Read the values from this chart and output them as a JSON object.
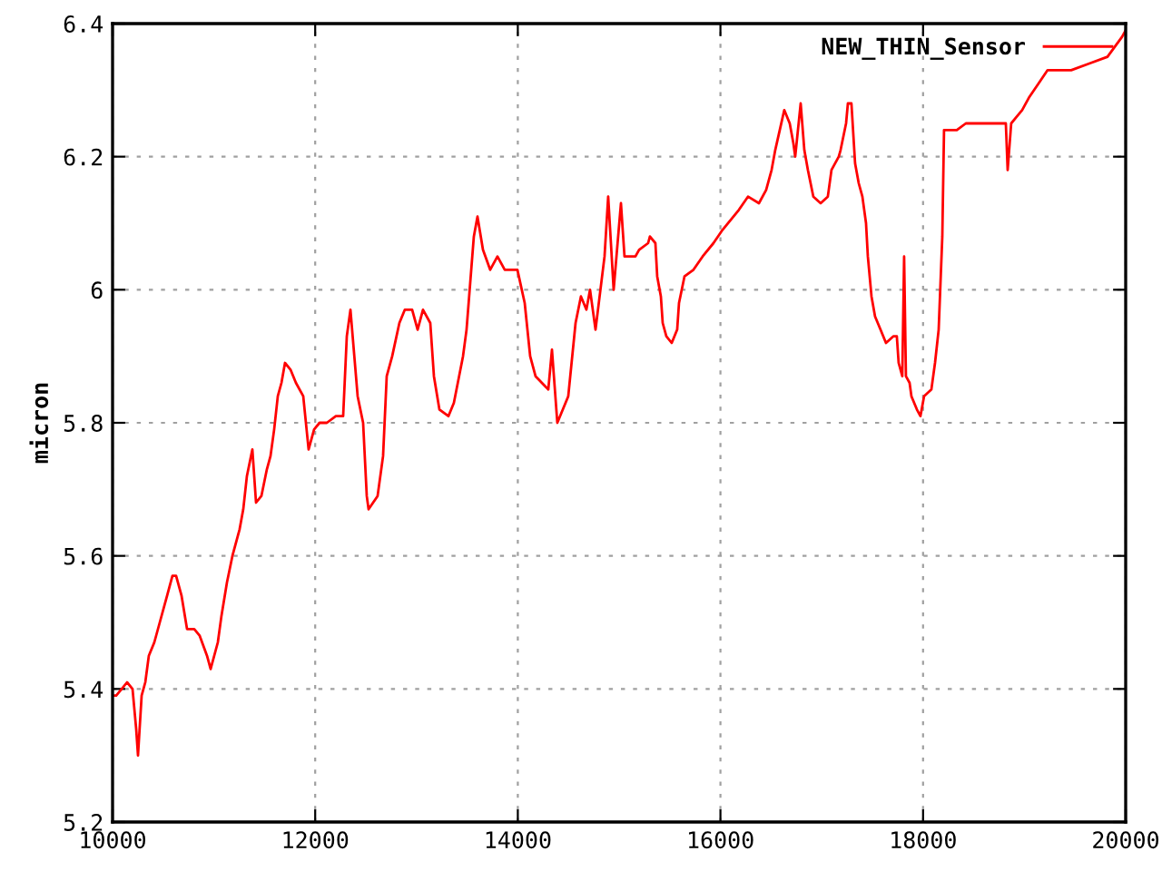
{
  "chart_data": {
    "type": "line",
    "ylabel": "micron",
    "xlim": [
      10000,
      20000
    ],
    "xticks": [
      10000,
      12000,
      14000,
      16000,
      18000,
      20000
    ],
    "ylim": [
      5.2,
      6.4
    ],
    "yticks": [
      5.2,
      5.4,
      5.6,
      5.8,
      {
        "value": 6.0,
        "label": "6"
      },
      6.2,
      6.4
    ],
    "grid": true,
    "legend": "top right",
    "line_style": "solid",
    "marker": "none",
    "series": [
      {
        "name": "NEW_THIN_Sensor",
        "color": "#ff0000",
        "x": [
          10000,
          10036,
          10090,
          10143,
          10197,
          10233,
          10251,
          10287,
          10323,
          10358,
          10412,
          10466,
          10538,
          10591,
          10627,
          10681,
          10735,
          10806,
          10860,
          10932,
          10968,
          11039,
          11075,
          11129,
          11183,
          11254,
          11290,
          11326,
          11380,
          11416,
          11469,
          11523,
          11559,
          11595,
          11631,
          11667,
          11702,
          11756,
          11810,
          11882,
          11935,
          11989,
          12043,
          12115,
          12204,
          12276,
          12312,
          12348,
          12419,
          12473,
          12509,
          12527,
          12616,
          12670,
          12706,
          12760,
          12831,
          12885,
          12957,
          13011,
          13064,
          13136,
          13172,
          13226,
          13315,
          13369,
          13459,
          13494,
          13566,
          13602,
          13656,
          13727,
          13799,
          13871,
          13996,
          14068,
          14122,
          14175,
          14301,
          14337,
          14390,
          14498,
          14570,
          14623,
          14677,
          14713,
          14767,
          14856,
          14892,
          14946,
          15018,
          15053,
          15161,
          15197,
          15286,
          15304,
          15358,
          15376,
          15412,
          15430,
          15466,
          15519,
          15573,
          15591,
          15645,
          15734,
          15824,
          15931,
          16021,
          16182,
          16272,
          16380,
          16451,
          16505,
          16541,
          16630,
          16684,
          16720,
          16738,
          16792,
          16828,
          16863,
          16917,
          16989,
          17060,
          17096,
          17168,
          17186,
          17240,
          17258,
          17293,
          17329,
          17365,
          17401,
          17437,
          17455,
          17491,
          17526,
          17580,
          17634,
          17706,
          17741,
          17759,
          17795,
          17813,
          17831,
          17867,
          17885,
          17939,
          17974,
          18010,
          18082,
          18118,
          18154,
          18172,
          18190,
          18207,
          18333,
          18422,
          18512,
          18745,
          18817,
          18835,
          18870,
          18924,
          18978,
          19050,
          19140,
          19229,
          19462,
          19641,
          19820,
          19964,
          20000
        ],
        "values": [
          5.39,
          5.39,
          5.4,
          5.41,
          5.4,
          5.34,
          5.3,
          5.39,
          5.41,
          5.45,
          5.47,
          5.5,
          5.54,
          5.57,
          5.57,
          5.54,
          5.49,
          5.49,
          5.48,
          5.45,
          5.43,
          5.47,
          5.51,
          5.56,
          5.6,
          5.64,
          5.67,
          5.72,
          5.76,
          5.68,
          5.69,
          5.73,
          5.75,
          5.79,
          5.84,
          5.86,
          5.89,
          5.88,
          5.86,
          5.84,
          5.76,
          5.79,
          5.8,
          5.8,
          5.81,
          5.81,
          5.93,
          5.97,
          5.84,
          5.8,
          5.69,
          5.67,
          5.69,
          5.75,
          5.87,
          5.9,
          5.95,
          5.97,
          5.97,
          5.94,
          5.97,
          5.95,
          5.87,
          5.82,
          5.81,
          5.83,
          5.9,
          5.94,
          6.08,
          6.11,
          6.06,
          6.03,
          6.05,
          6.03,
          6.03,
          5.98,
          5.9,
          5.87,
          5.85,
          5.91,
          5.8,
          5.84,
          5.95,
          5.99,
          5.97,
          6.0,
          5.94,
          6.05,
          6.14,
          6.0,
          6.13,
          6.05,
          6.05,
          6.06,
          6.07,
          6.08,
          6.07,
          6.02,
          5.99,
          5.95,
          5.93,
          5.92,
          5.94,
          5.98,
          6.02,
          6.03,
          6.05,
          6.07,
          6.09,
          6.12,
          6.14,
          6.13,
          6.15,
          6.18,
          6.21,
          6.27,
          6.25,
          6.22,
          6.2,
          6.28,
          6.21,
          6.18,
          6.14,
          6.13,
          6.14,
          6.18,
          6.2,
          6.21,
          6.25,
          6.28,
          6.28,
          6.19,
          6.16,
          6.14,
          6.1,
          6.05,
          5.99,
          5.96,
          5.94,
          5.92,
          5.93,
          5.93,
          5.89,
          5.87,
          6.05,
          5.87,
          5.86,
          5.84,
          5.82,
          5.81,
          5.84,
          5.85,
          5.89,
          5.94,
          6.01,
          6.08,
          6.24,
          6.24,
          6.25,
          6.25,
          6.25,
          6.25,
          6.18,
          6.25,
          6.26,
          6.27,
          6.29,
          6.31,
          6.33,
          6.33,
          6.34,
          6.35,
          6.38,
          6.39
        ]
      }
    ]
  }
}
